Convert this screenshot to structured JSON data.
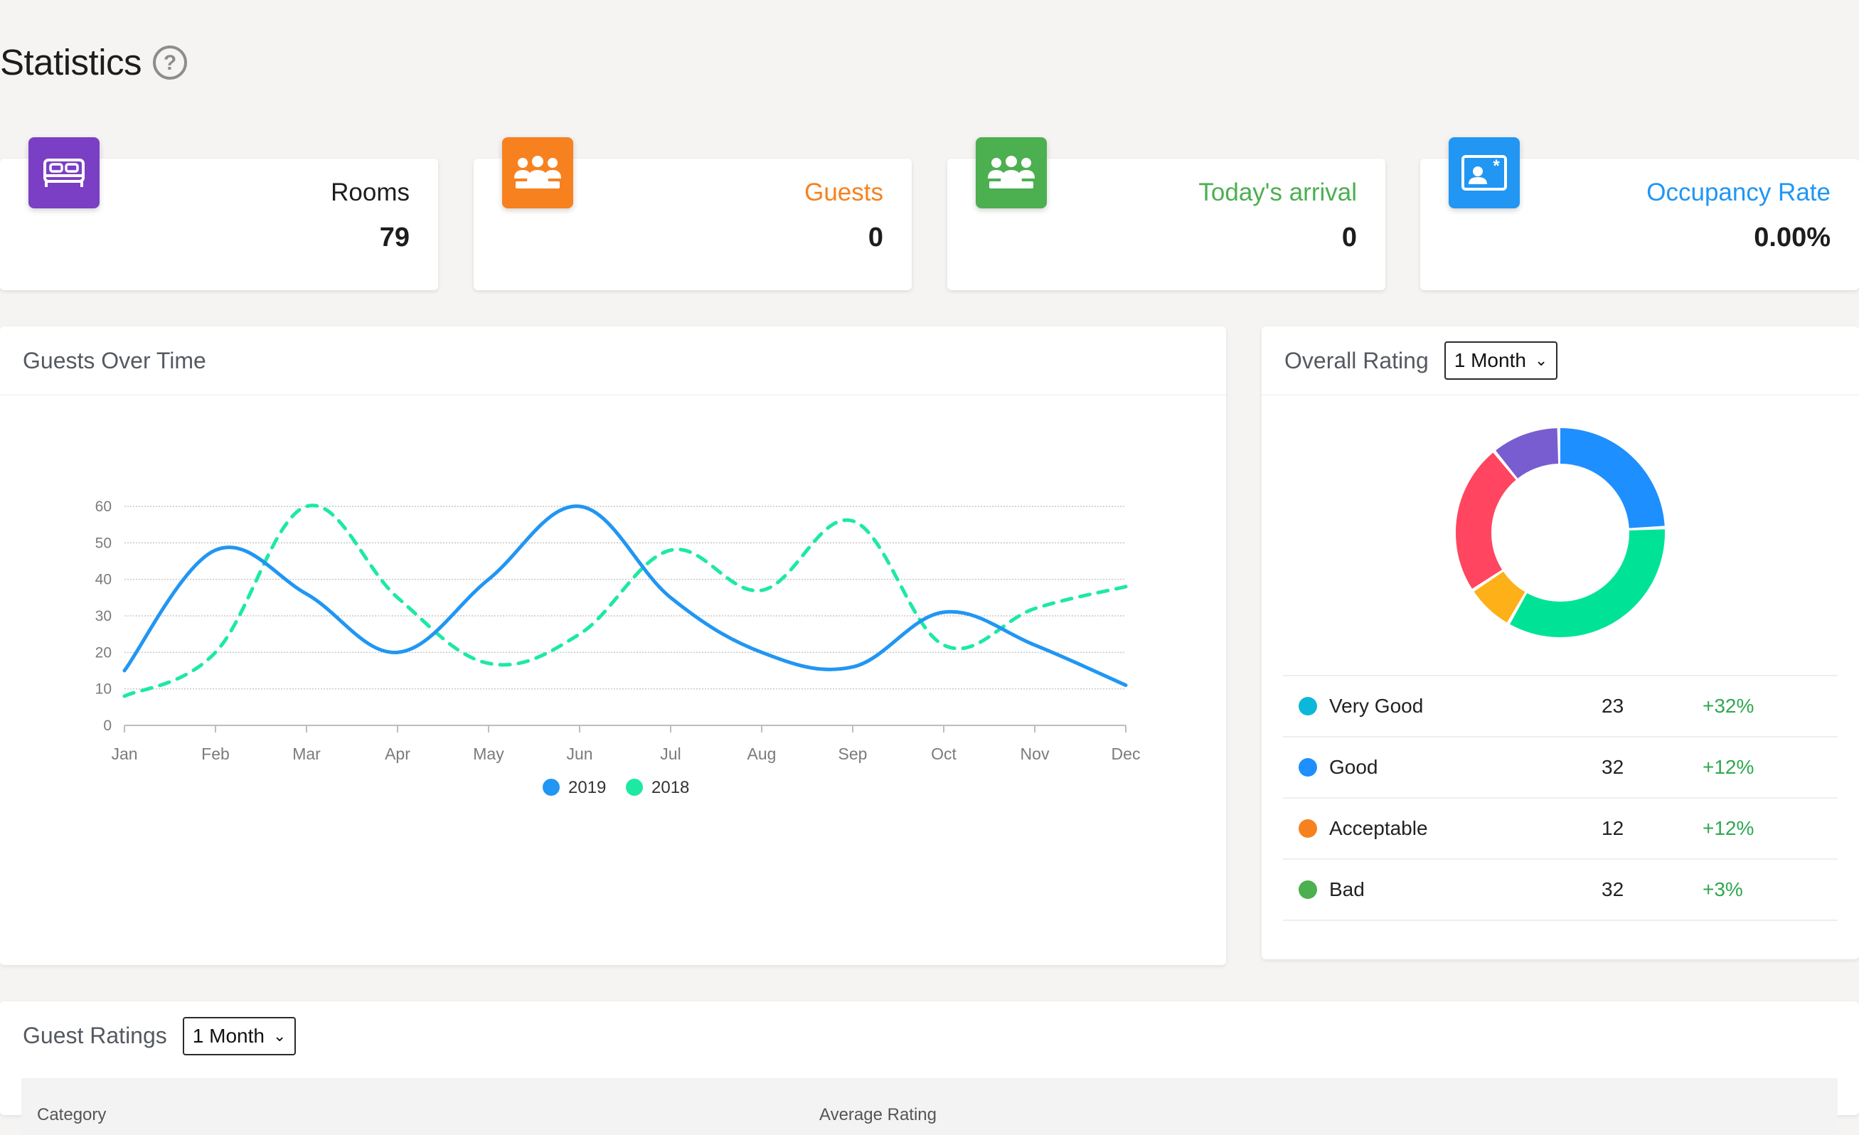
{
  "page": {
    "title": "Statistics",
    "help_icon": "question-circle-icon"
  },
  "stats": [
    {
      "label": "Rooms",
      "value": "79",
      "icon": "bed-icon",
      "color": "#7a3fc4",
      "label_color": "#1d1d1d"
    },
    {
      "label": "Guests",
      "value": "0",
      "icon": "group-icon",
      "color": "#f7811f",
      "label_color": "#f7811f"
    },
    {
      "label": "Today's arrival",
      "value": "0",
      "icon": "group-icon",
      "color": "#4caf50",
      "label_color": "#4caf50"
    },
    {
      "label": "Occupancy Rate",
      "value": "0.00%",
      "icon": "id-card-icon",
      "color": "#2196f3",
      "label_color": "#2196f3"
    }
  ],
  "guests_over_time": {
    "title": "Guests Over Time"
  },
  "chart_data": {
    "type": "line",
    "categories": [
      "Jan",
      "Feb",
      "Mar",
      "Apr",
      "May",
      "Jun",
      "Jul",
      "Aug",
      "Sep",
      "Oct",
      "Nov",
      "Dec"
    ],
    "y_ticks": [
      0,
      10,
      20,
      30,
      40,
      50,
      60
    ],
    "ylim": [
      0,
      60
    ],
    "series": [
      {
        "name": "2019",
        "color": "#2196f3",
        "dashed": false,
        "values": [
          15,
          48,
          36,
          20,
          40,
          60,
          35,
          20,
          16,
          31,
          22,
          11
        ]
      },
      {
        "name": "2018",
        "color": "#1de9a3",
        "dashed": true,
        "values": [
          8,
          20,
          60,
          35,
          17,
          25,
          48,
          37,
          56,
          22,
          32,
          38
        ]
      }
    ],
    "legend": "bottom-center",
    "grid": true
  },
  "overall_rating": {
    "title": "Overall Rating",
    "period": "1 Month",
    "donut": [
      {
        "value": 23,
        "color": "#1e8fff"
      },
      {
        "value": 32,
        "color": "#00e396"
      },
      {
        "value": 7,
        "color": "#feb019"
      },
      {
        "value": 22,
        "color": "#ff4560"
      },
      {
        "value": 10,
        "color": "#775dd0"
      }
    ],
    "rows": [
      {
        "label": "Very Good",
        "count": "23",
        "change": "+32%",
        "color": "#0bb8d9"
      },
      {
        "label": "Good",
        "count": "32",
        "change": "+12%",
        "color": "#1e8fff"
      },
      {
        "label": "Acceptable",
        "count": "12",
        "change": "+12%",
        "color": "#f7811f"
      },
      {
        "label": "Bad",
        "count": "32",
        "change": "+3%",
        "color": "#4caf50"
      }
    ]
  },
  "guest_ratings": {
    "title": "Guest Ratings",
    "period": "1 Month",
    "columns": [
      "Category",
      "Average Rating"
    ]
  }
}
